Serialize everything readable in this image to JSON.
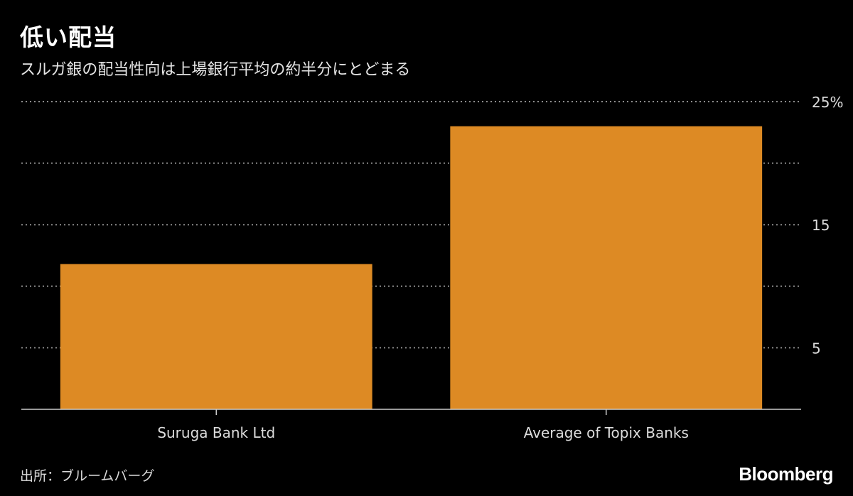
{
  "header": {
    "title": "低い配当",
    "subtitle": "スルガ銀の配当性向は上場銀行平均の約半分にとどまる"
  },
  "footer": {
    "source": "出所：ブルームバーグ",
    "brand": "Bloomberg"
  },
  "colors": {
    "bar": "#dd8a24",
    "grid": "#8c8c8c",
    "axis": "#cccccc",
    "text": "#dddddd"
  },
  "chart_data": {
    "type": "bar",
    "categories": [
      "Suruga Bank Ltd",
      "Average of Topix Banks"
    ],
    "values": [
      11.8,
      23
    ],
    "ylim": [
      0,
      25
    ],
    "yticks": [
      5,
      15,
      25
    ],
    "ytick_labels": [
      "5",
      "15",
      "25%"
    ],
    "gridlines": [
      5,
      10,
      15,
      20,
      25
    ],
    "grid": true,
    "xlabel": "",
    "ylabel": ""
  }
}
